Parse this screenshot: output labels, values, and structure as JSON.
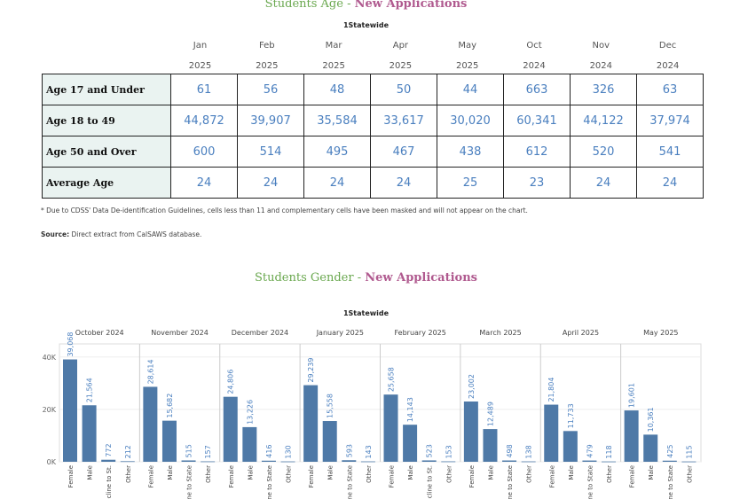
{
  "age_section": {
    "title_part1": "Students Age - ",
    "title_part2": "New Applications",
    "subtitle": "1Statewide",
    "months": [
      "Jan",
      "Feb",
      "Mar",
      "Apr",
      "May",
      "Oct",
      "Nov",
      "Dec"
    ],
    "years": [
      "2025",
      "2025",
      "2025",
      "2025",
      "2025",
      "2024",
      "2024",
      "2024"
    ],
    "rows": [
      {
        "label": "Age 17 and Under",
        "values": [
          "61",
          "56",
          "48",
          "50",
          "44",
          "663",
          "326",
          "63"
        ]
      },
      {
        "label": "Age 18 to 49",
        "values": [
          "44,872",
          "39,907",
          "35,584",
          "33,617",
          "30,020",
          "60,341",
          "44,122",
          "37,974"
        ]
      },
      {
        "label": "Age 50 and Over",
        "values": [
          "600",
          "514",
          "495",
          "467",
          "438",
          "612",
          "520",
          "541"
        ]
      },
      {
        "label": "Average Age",
        "values": [
          "24",
          "24",
          "24",
          "24",
          "25",
          "23",
          "24",
          "24"
        ]
      }
    ],
    "footnote": "* Due to CDSS' Data De-identification Guidelines, cells less than 11 and complementary cells have been masked and will not appear on the chart.",
    "source_label": "Source:",
    "source_text": " Direct extract from CalSAWS database."
  },
  "gender_section": {
    "title_part1": "Students Gender - ",
    "title_part2": "New Applications",
    "subtitle": "1Statewide"
  },
  "chart_data": {
    "type": "bar",
    "bar_color": "#4e79a7",
    "label_color": "#4a7fbf",
    "y_ticks": [
      "0K",
      "20K",
      "40K"
    ],
    "ylim": [
      0,
      45000
    ],
    "grid": true,
    "categories": [
      "Female",
      "Male",
      "Decline to State",
      "Other"
    ],
    "panels": [
      {
        "name": "October 2024",
        "values": [
          39068,
          21564,
          772,
          212
        ],
        "labels": [
          "39,068",
          "21,564",
          "772",
          "212"
        ],
        "cat_labels": [
          "Female",
          "Male",
          "Decline to St.",
          "Other"
        ]
      },
      {
        "name": "November 2024",
        "values": [
          28614,
          15682,
          515,
          157
        ],
        "labels": [
          "28,614",
          "15,682",
          "515",
          "157"
        ],
        "cat_labels": [
          "Female",
          "Male",
          "Decline to State",
          "Other"
        ]
      },
      {
        "name": "December 2024",
        "values": [
          24806,
          13226,
          416,
          130
        ],
        "labels": [
          "24,806",
          "13,226",
          "416",
          "130"
        ],
        "cat_labels": [
          "Female",
          "Male",
          "Decline to State",
          "Other"
        ]
      },
      {
        "name": "January 2025",
        "values": [
          29239,
          15558,
          593,
          143
        ],
        "labels": [
          "29,239",
          "15,558",
          "593",
          "143"
        ],
        "cat_labels": [
          "Female",
          "Male",
          "Decline to State",
          "Other"
        ]
      },
      {
        "name": "February 2025",
        "values": [
          25658,
          14143,
          523,
          153
        ],
        "labels": [
          "25,658",
          "14,143",
          "523",
          "153"
        ],
        "cat_labels": [
          "Female",
          "Male",
          "Decline to St.",
          "Other"
        ]
      },
      {
        "name": "March 2025",
        "values": [
          23002,
          12489,
          498,
          138
        ],
        "labels": [
          "23,002",
          "12,489",
          "498",
          "138"
        ],
        "cat_labels": [
          "Female",
          "Male",
          "Decline to State",
          "Other"
        ]
      },
      {
        "name": "April 2025",
        "values": [
          21804,
          11733,
          479,
          118
        ],
        "labels": [
          "21,804",
          "11,733",
          "479",
          "118"
        ],
        "cat_labels": [
          "Female",
          "Male",
          "Decline to State",
          "Other"
        ]
      },
      {
        "name": "May 2025",
        "values": [
          19601,
          10361,
          425,
          115
        ],
        "labels": [
          "19,601",
          "10,361",
          "425",
          "115"
        ],
        "cat_labels": [
          "Female",
          "Male",
          "Decline to State",
          "Other"
        ]
      }
    ]
  }
}
